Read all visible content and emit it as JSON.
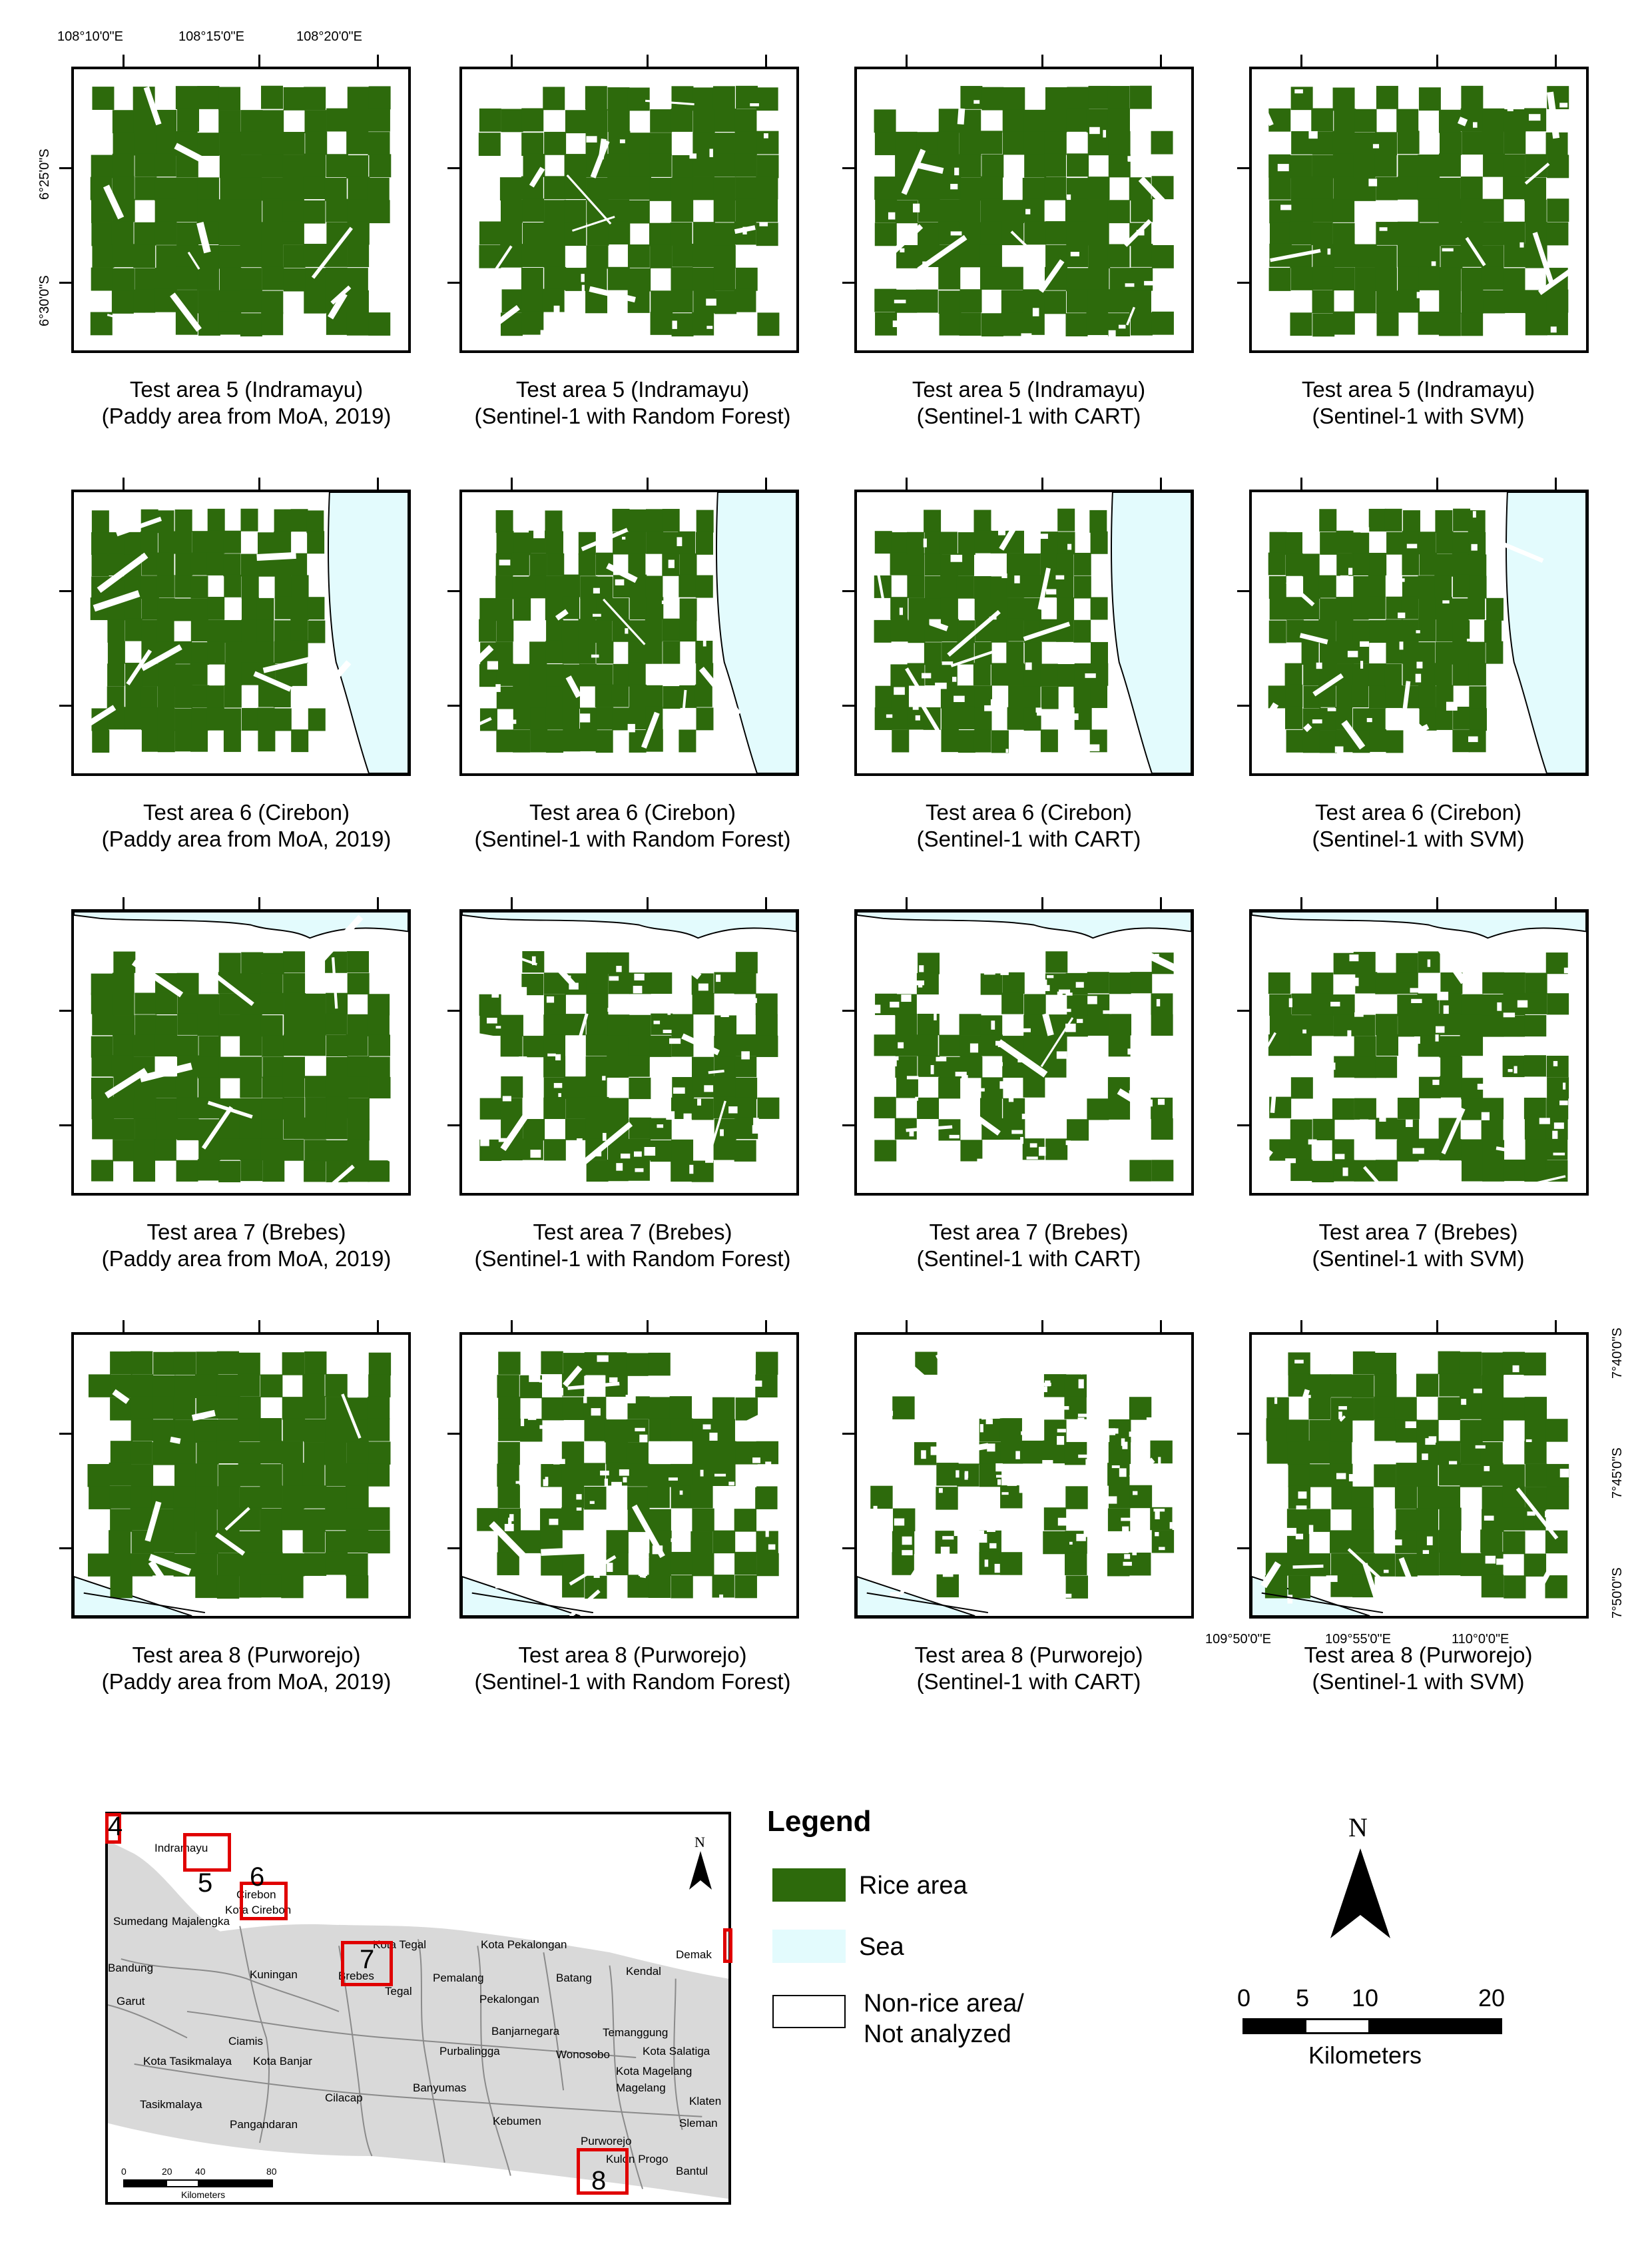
{
  "colors": {
    "rice": "#2d6a0c",
    "sea": "#e3fbfd",
    "non_rice": "#ffffff",
    "inset_land": "#d9d9d9",
    "study_box": "#e00000"
  },
  "top_coords": {
    "x_labels": [
      "108°10'0\"E",
      "108°15'0\"E",
      "108°20'0\"E"
    ],
    "y_labels": [
      "6°25'0\"S",
      "6°30'0\"S"
    ]
  },
  "bottom_coords": {
    "x_labels": [
      "109°50'0\"E",
      "109°55'0\"E",
      "110°0'0\"E"
    ],
    "y_labels": [
      "7°40'0\"S",
      "7°45'0\"S",
      "7°50'0\"S"
    ]
  },
  "rows": [
    {
      "panels": [
        {
          "title": "Test area 5 (Indramayu)",
          "subtitle": "(Paddy area from MoA, 2019)"
        },
        {
          "title": "Test area 5 (Indramayu)",
          "subtitle": "(Sentinel-1 with Random Forest)"
        },
        {
          "title": "Test area 5 (Indramayu)",
          "subtitle": "(Sentinel-1 with CART)"
        },
        {
          "title": "Test area 5 (Indramayu)",
          "subtitle": "(Sentinel-1 with SVM)"
        }
      ]
    },
    {
      "panels": [
        {
          "title": "Test area 6 (Cirebon)",
          "subtitle": "(Paddy area from MoA, 2019)"
        },
        {
          "title": "Test area 6 (Cirebon)",
          "subtitle": "(Sentinel-1 with Random Forest)"
        },
        {
          "title": "Test area 6 (Cirebon)",
          "subtitle": "(Sentinel-1 with CART)"
        },
        {
          "title": "Test area 6 (Cirebon)",
          "subtitle": "(Sentinel-1 with SVM)"
        }
      ]
    },
    {
      "panels": [
        {
          "title": "Test area 7 (Brebes)",
          "subtitle": "(Paddy area from MoA, 2019)"
        },
        {
          "title": "Test area 7 (Brebes)",
          "subtitle": "(Sentinel-1 with Random Forest)"
        },
        {
          "title": "Test area 7 (Brebes)",
          "subtitle": "(Sentinel-1 with CART)"
        },
        {
          "title": "Test area 7 (Brebes)",
          "subtitle": "(Sentinel-1 with SVM)"
        }
      ]
    },
    {
      "panels": [
        {
          "title": "Test area 8 (Purworejo)",
          "subtitle": "(Paddy area from MoA, 2019)"
        },
        {
          "title": "Test area 8 (Purworejo)",
          "subtitle": "(Sentinel-1 with Random Forest)"
        },
        {
          "title": "Test area 8 (Purworejo)",
          "subtitle": "(Sentinel-1 with CART)"
        },
        {
          "title": "Test area 8 (Purworejo)",
          "subtitle": "(Sentinel-1 with SVM)"
        }
      ]
    }
  ],
  "legend": {
    "title": "Legend",
    "items": [
      {
        "label": "Rice area"
      },
      {
        "label": "Sea"
      },
      {
        "label_line1": "Non-rice area/",
        "label_line2": "Not analyzed"
      }
    ]
  },
  "scale_bar": {
    "north": "N",
    "ticks": [
      "0",
      "5",
      "10",
      "20"
    ],
    "unit": "Kilometers"
  },
  "inset_map": {
    "north": "N",
    "area_numbers": [
      "4",
      "5",
      "6",
      "7",
      "8"
    ],
    "places": [
      "Indramayu",
      "Cirebon",
      "Kota Cirebon",
      "Sumedang",
      "Majalengka",
      "Kota Tegal",
      "Kota Pekalongan",
      "Demak",
      "Bandung",
      "Kuningan",
      "Brebes",
      "Tegal",
      "Pemalang",
      "Batang",
      "Kendal",
      "Pekalongan",
      "Garut",
      "Ciamis",
      "Banjarnegara",
      "Temanggung",
      "Kota Tasikmalaya",
      "Kota Banjar",
      "Purbalingga",
      "Wonosobo",
      "Kota Salatiga",
      "Kota Magelang",
      "Tasikmalaya",
      "Cilacap",
      "Banyumas",
      "Magelang",
      "Pangandaran",
      "Kebumen",
      "Klaten",
      "Purworejo",
      "Sleman",
      "Kulon Progo",
      "Bantul"
    ],
    "scale_ticks": [
      "0",
      "20",
      "40",
      "80"
    ],
    "scale_unit": "Kilometers"
  }
}
